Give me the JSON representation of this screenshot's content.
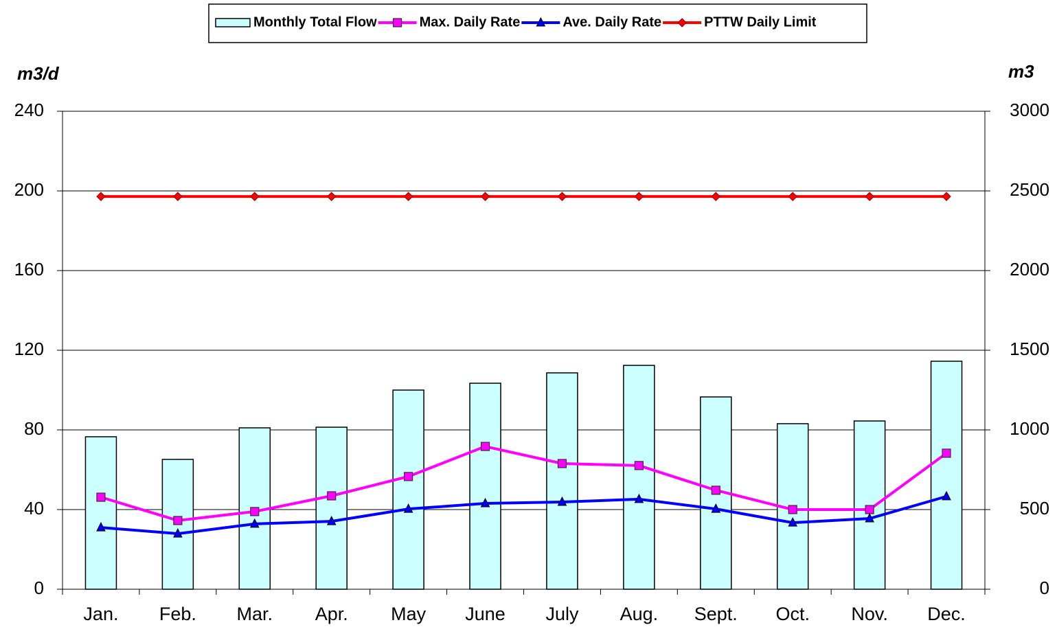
{
  "chart_data": {
    "type": "bar",
    "categories": [
      "Jan.",
      "Feb.",
      "Mar.",
      "Apr.",
      "May",
      "June",
      "July",
      "Aug.",
      "Sept.",
      "Oct.",
      "Nov.",
      "Dec."
    ],
    "ylabel": "m3/d",
    "y2label": "m3",
    "ylim": [
      0,
      240
    ],
    "yticks": [
      0,
      40,
      80,
      120,
      160,
      200,
      240
    ],
    "y2lim": [
      0,
      3000
    ],
    "y2ticks": [
      0,
      500,
      1000,
      1500,
      2000,
      2500,
      3000
    ],
    "grid": true,
    "legend": "top",
    "series": [
      {
        "name": "Monthly Total Flow",
        "type": "bar",
        "axis": "y2",
        "color": "#ccffff",
        "values": [
          957,
          815,
          1013,
          1017,
          1250,
          1293,
          1358,
          1405,
          1207,
          1039,
          1056,
          1431
        ]
      },
      {
        "name": "Max. Daily Rate",
        "type": "line",
        "marker": "square",
        "color": "#ff00ff",
        "values": [
          46.2,
          34.5,
          39,
          46.9,
          56.6,
          71.7,
          63.1,
          62.1,
          49.7,
          40,
          40,
          68.3
        ]
      },
      {
        "name": "Ave. Daily Rate",
        "type": "line",
        "marker": "triangle",
        "color": "#0000ff",
        "values": [
          31,
          27.9,
          32.8,
          34.1,
          40.3,
          43.1,
          43.8,
          45.2,
          40.3,
          33.4,
          35.5,
          46.6
        ]
      },
      {
        "name": "PTTW Daily Limit",
        "type": "line",
        "marker": "diamond",
        "color": "#ff0000",
        "values": [
          197.2,
          197.2,
          197.2,
          197.2,
          197.2,
          197.2,
          197.2,
          197.2,
          197.2,
          197.2,
          197.2,
          197.2
        ]
      }
    ]
  }
}
